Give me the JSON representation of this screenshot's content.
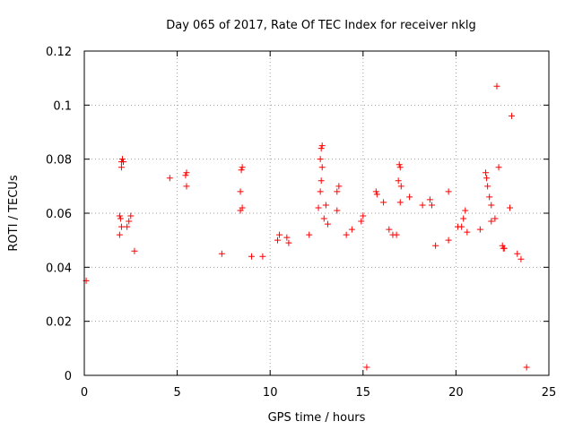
{
  "chart_data": {
    "type": "scatter",
    "title": "Day 065 of 2017, Rate Of TEC Index for receiver nklg",
    "xlabel": "GPS time / hours",
    "ylabel": "ROTI / TECUs",
    "xlim": [
      0,
      25
    ],
    "ylim": [
      0,
      0.12
    ],
    "xticks": [
      0,
      5,
      10,
      15,
      20,
      25
    ],
    "xtick_labels": [
      "0",
      "5",
      "10",
      "15",
      "20",
      "25"
    ],
    "yticks": [
      0,
      0.02,
      0.04,
      0.06,
      0.08,
      0.1,
      0.12
    ],
    "ytick_labels": [
      "0",
      "0.02",
      "0.04",
      "0.06",
      "0.08",
      "0.1",
      "0.12"
    ],
    "grid": true,
    "marker": "+",
    "color": "#ff0000",
    "series": [
      {
        "values": [
          [
            2.0,
            0.079
          ],
          [
            2.05,
            0.08
          ],
          [
            2.1,
            0.079
          ],
          [
            2.0,
            0.077
          ],
          [
            4.6,
            0.073
          ],
          [
            5.5,
            0.075
          ],
          [
            5.45,
            0.074
          ],
          [
            5.5,
            0.07
          ],
          [
            8.5,
            0.077
          ],
          [
            8.45,
            0.076
          ],
          [
            8.4,
            0.068
          ],
          [
            8.5,
            0.062
          ],
          [
            8.4,
            0.061
          ],
          [
            12.8,
            0.085
          ],
          [
            12.75,
            0.084
          ],
          [
            12.7,
            0.08
          ],
          [
            12.8,
            0.077
          ],
          [
            12.75,
            0.072
          ],
          [
            12.7,
            0.068
          ],
          [
            13.0,
            0.063
          ],
          [
            12.6,
            0.062
          ],
          [
            13.7,
            0.07
          ],
          [
            13.6,
            0.068
          ],
          [
            13.6,
            0.061
          ],
          [
            15.0,
            0.059
          ],
          [
            14.9,
            0.057
          ],
          [
            15.7,
            0.068
          ],
          [
            15.75,
            0.067
          ],
          [
            16.1,
            0.064
          ],
          [
            16.95,
            0.078
          ],
          [
            17.0,
            0.077
          ],
          [
            16.9,
            0.072
          ],
          [
            17.05,
            0.07
          ],
          [
            17.5,
            0.066
          ],
          [
            17.0,
            0.064
          ],
          [
            18.2,
            0.063
          ],
          [
            18.6,
            0.065
          ],
          [
            18.7,
            0.063
          ],
          [
            19.6,
            0.068
          ],
          [
            20.5,
            0.061
          ],
          [
            20.4,
            0.058
          ],
          [
            20.3,
            0.055
          ],
          [
            21.6,
            0.075
          ],
          [
            21.65,
            0.073
          ],
          [
            21.7,
            0.07
          ],
          [
            21.8,
            0.066
          ],
          [
            21.9,
            0.063
          ],
          [
            22.2,
            0.107
          ],
          [
            22.3,
            0.077
          ],
          [
            23.0,
            0.096
          ],
          [
            22.9,
            0.062
          ],
          [
            22.5,
            0.048
          ],
          [
            22.55,
            0.047
          ],
          [
            22.6,
            0.047
          ],
          [
            1.9,
            0.059
          ],
          [
            1.95,
            0.058
          ],
          [
            2.0,
            0.055
          ],
          [
            1.9,
            0.052
          ],
          [
            2.3,
            0.055
          ],
          [
            2.5,
            0.059
          ],
          [
            2.4,
            0.057
          ],
          [
            2.7,
            0.046
          ],
          [
            7.4,
            0.045
          ],
          [
            9.0,
            0.044
          ],
          [
            9.6,
            0.044
          ],
          [
            10.4,
            0.05
          ],
          [
            10.5,
            0.052
          ],
          [
            10.9,
            0.051
          ],
          [
            11.0,
            0.049
          ],
          [
            12.1,
            0.052
          ],
          [
            12.9,
            0.058
          ],
          [
            13.1,
            0.056
          ],
          [
            14.1,
            0.052
          ],
          [
            14.4,
            0.054
          ],
          [
            16.4,
            0.054
          ],
          [
            16.6,
            0.052
          ],
          [
            16.8,
            0.052
          ],
          [
            18.9,
            0.048
          ],
          [
            19.6,
            0.05
          ],
          [
            20.1,
            0.055
          ],
          [
            20.6,
            0.053
          ],
          [
            21.3,
            0.054
          ],
          [
            21.9,
            0.057
          ],
          [
            22.1,
            0.058
          ],
          [
            23.3,
            0.045
          ],
          [
            23.5,
            0.043
          ],
          [
            15.2,
            0.003
          ],
          [
            23.8,
            0.003
          ],
          [
            0.1,
            0.035
          ]
        ]
      }
    ]
  }
}
